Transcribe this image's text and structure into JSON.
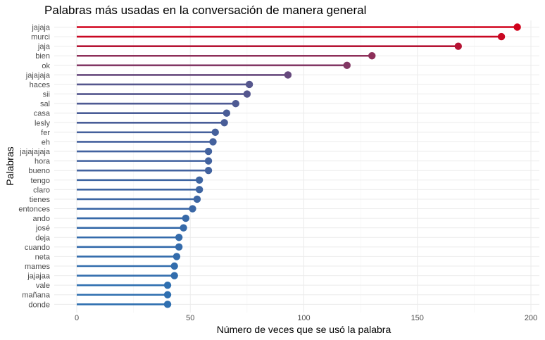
{
  "chart_data": {
    "type": "lollipop",
    "title": "Palabras más usadas en la conversación de manera general",
    "xlabel": "Número de veces que se usó la palabra",
    "ylabel": "Palabras",
    "xlim": [
      0,
      200
    ],
    "xticks": [
      0,
      50,
      100,
      150,
      200
    ],
    "grid": true,
    "color_low": "#2f6fb0",
    "color_high": "#d0021b",
    "categories": [
      "jajaja",
      "murci",
      "jaja",
      "bien",
      "ok",
      "jajajaja",
      "haces",
      "sii",
      "sal",
      "casa",
      "lesly",
      "fer",
      "eh",
      "jajajajaja",
      "hora",
      "bueno",
      "tengo",
      "claro",
      "tienes",
      "entonces",
      "ando",
      "josé",
      "deja",
      "cuando",
      "neta",
      "mames",
      "jajajaa",
      "vale",
      "mañana",
      "donde"
    ],
    "values": [
      194,
      187,
      168,
      130,
      119,
      93,
      76,
      75,
      70,
      66,
      65,
      61,
      60,
      58,
      58,
      58,
      54,
      54,
      53,
      51,
      48,
      47,
      45,
      45,
      44,
      43,
      43,
      40,
      40,
      40
    ]
  }
}
